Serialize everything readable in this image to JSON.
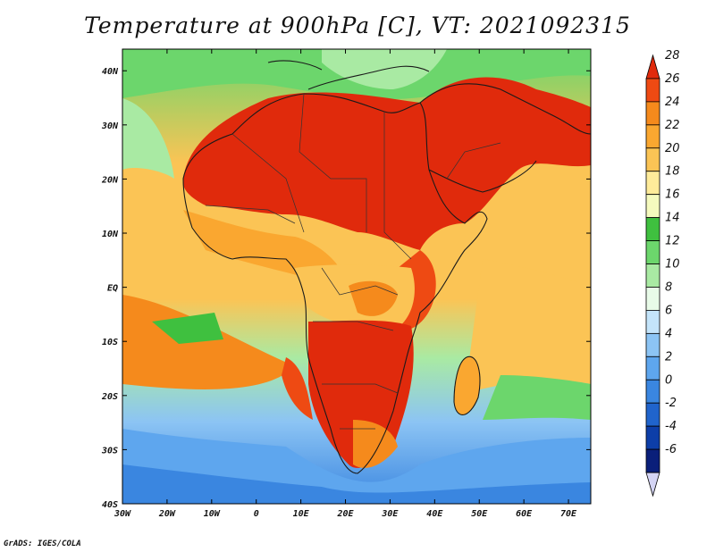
{
  "title": "Temperature at 900hPa [C], VT: 2021092315",
  "credit": "GrADS: IGES/COLA",
  "map": {
    "lon_labels": [
      "30W",
      "20W",
      "10W",
      "0",
      "10E",
      "20E",
      "30E",
      "40E",
      "50E",
      "60E",
      "70E"
    ],
    "lat_labels": [
      "40N",
      "30N",
      "20N",
      "10N",
      "EQ",
      "10S",
      "20S",
      "30S",
      "40S"
    ],
    "lon_range": [
      -30,
      75
    ],
    "lat_range": [
      -40,
      44
    ]
  },
  "colorbar": {
    "labels": [
      "28",
      "26",
      "24",
      "22",
      "20",
      "18",
      "16",
      "14",
      "12",
      "10",
      "8",
      "6",
      "4",
      "2",
      "0",
      "-2",
      "-4",
      "-6"
    ],
    "colors": [
      "#e02a0c",
      "#ee4a13",
      "#f58a1c",
      "#faa730",
      "#fbc455",
      "#feeb9a",
      "#f5fabe",
      "#3fc03f",
      "#6cd66c",
      "#a9eaa3",
      "#e8fbe8",
      "#c4e4fa",
      "#8cc4f4",
      "#5ea6ee",
      "#3a86e0",
      "#2064cc",
      "#0d3ea8",
      "#0a1f7a",
      "#d4d4f4"
    ]
  }
}
